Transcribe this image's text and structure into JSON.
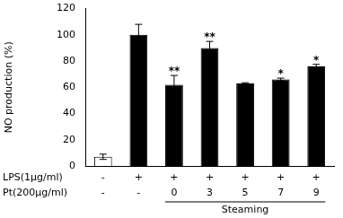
{
  "chart_data": {
    "type": "bar",
    "y_label": "NO production (%)",
    "row_labels": [
      "LPS(1μg/ml)",
      "Pt(200μg/ml)"
    ],
    "categories": [
      [
        "-",
        "-"
      ],
      [
        "+",
        "-"
      ],
      [
        "+",
        "0"
      ],
      [
        "+",
        "3"
      ],
      [
        "+",
        "5"
      ],
      [
        "+",
        "7"
      ],
      [
        "+",
        "9"
      ]
    ],
    "groups": [
      {
        "label": "Steaming",
        "from": "0",
        "to": "9"
      }
    ],
    "values": [
      7,
      100,
      62,
      90,
      63,
      66,
      76
    ],
    "errors": [
      2,
      8,
      7,
      5,
      0.5,
      1,
      1.5
    ],
    "annotations": [
      null,
      null,
      "**",
      "**",
      null,
      "*",
      "*"
    ],
    "colors": [
      "#ffffff",
      "#000000",
      "#000000",
      "#000000",
      "#000000",
      "#000000",
      "#000000"
    ],
    "ylim": [
      0,
      120
    ],
    "yticks": [
      0,
      20,
      40,
      60,
      80,
      100,
      120
    ],
    "grid": false
  }
}
